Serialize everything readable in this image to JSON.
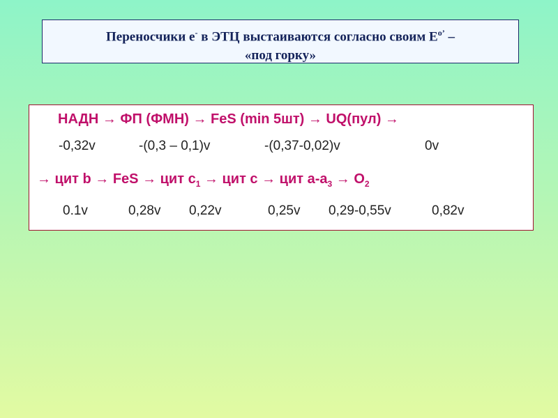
{
  "header": {
    "title": {
      "part1": "Переносчики е",
      "sup1": "-",
      "part2": " в ЭТЦ выстаиваются согласно своим Е",
      "sup2": "o’",
      "part3": " –",
      "line2": "«под  горку»"
    }
  },
  "chain": {
    "row1": "НАДН → ФП (ФМН) → FeS (min 5шт) → UQ(пул) →",
    "row1_potentials": [
      "-0,32v",
      "-(0,3 – 0,1)v",
      "-(0,37-0,02)v",
      "0v"
    ],
    "row2": {
      "part1": "→ цит b → FeS → цит c",
      "sub1": "1",
      "part2": " → цит c → цит a-a",
      "sub2": "3",
      "part3": " → O",
      "sub3": "2"
    },
    "row2_potentials": [
      "0.1v",
      "0,28v",
      "0,22v",
      "0,25v",
      "0,29-0,55v",
      "0,82v"
    ]
  }
}
